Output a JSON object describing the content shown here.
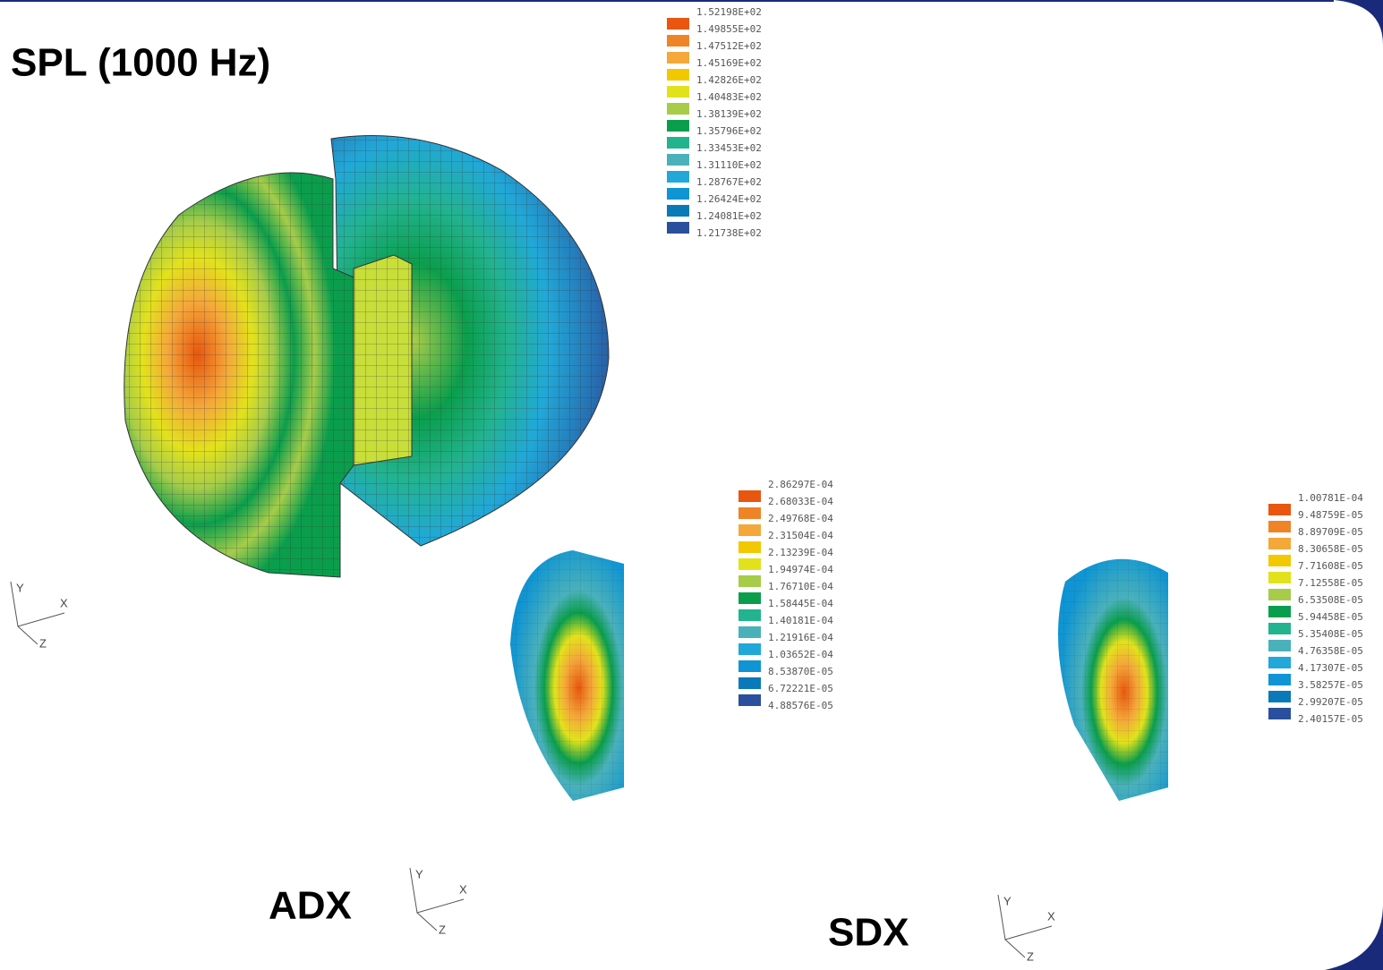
{
  "title": "SPL (1000 Hz)",
  "legend_colors": [
    "#e8560f",
    "#ef8427",
    "#f4a83a",
    "#f2c800",
    "#e2e21c",
    "#a6cc4a",
    "#0a9e4c",
    "#22b38f",
    "#4ab1bb",
    "#21a8d8",
    "#0f95d3",
    "#0a79b8",
    "#2a4f9c"
  ],
  "legends": [
    {
      "labels": [
        "1.52198E+02",
        "1.49855E+02",
        "1.47512E+02",
        "1.45169E+02",
        "1.42826E+02",
        "1.40483E+02",
        "1.38139E+02",
        "1.35796E+02",
        "1.33453E+02",
        "1.31110E+02",
        "1.28767E+02",
        "1.26424E+02",
        "1.24081E+02",
        "1.21738E+02"
      ]
    },
    {
      "caption": "ADX",
      "labels": [
        "2.86297E-04",
        "2.68033E-04",
        "2.49768E-04",
        "2.31504E-04",
        "2.13239E-04",
        "1.94974E-04",
        "1.76710E-04",
        "1.58445E-04",
        "1.40181E-04",
        "1.21916E-04",
        "1.03652E-04",
        "8.53870E-05",
        "6.72221E-05",
        "4.88576E-05"
      ]
    },
    {
      "caption": "SDX",
      "labels": [
        "1.00781E-04",
        "9.48759E-05",
        "8.89709E-05",
        "8.30658E-05",
        "7.71608E-05",
        "7.12558E-05",
        "6.53508E-05",
        "5.94458E-05",
        "5.35408E-05",
        "4.76358E-05",
        "4.17307E-05",
        "3.58257E-05",
        "2.99207E-05",
        "2.40157E-05"
      ]
    }
  ],
  "axes_triad": [
    "Y",
    "X",
    "Z"
  ]
}
